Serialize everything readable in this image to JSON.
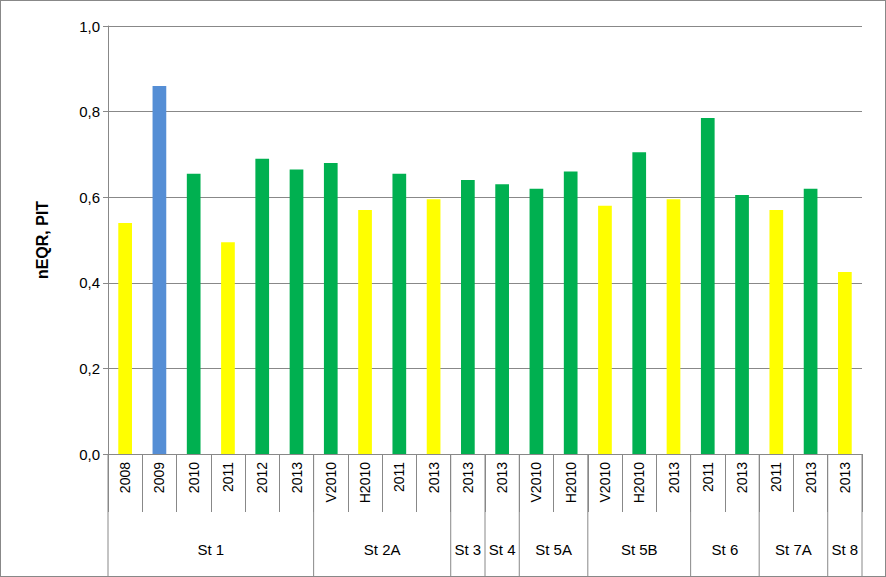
{
  "chart_data": {
    "type": "bar",
    "y_label": "nEQR, PIT",
    "categories": [
      "2008",
      "2009",
      "2010",
      "2011",
      "2012",
      "2013",
      "V2010",
      "H2010",
      "2011",
      "2013",
      "2013",
      "2013",
      "V2010",
      "H2010",
      "V2010",
      "H2010",
      "2013",
      "2011",
      "2013",
      "2011",
      "2013",
      "2013"
    ],
    "category_groups": [
      "St 1",
      "St 1",
      "St 1",
      "St 1",
      "St 1",
      "St 1",
      "St 2A",
      "St 2A",
      "St 2A",
      "St 2A",
      "St 3",
      "St 4",
      "St 5A",
      "St 5A",
      "St 5B",
      "St 5B",
      "St 5B",
      "St 6",
      "St 6",
      "St 7A",
      "St 7A",
      "St 8"
    ],
    "values": [
      0.54,
      0.86,
      0.655,
      0.495,
      0.69,
      0.665,
      0.68,
      0.57,
      0.655,
      0.595,
      0.64,
      0.63,
      0.62,
      0.66,
      0.58,
      0.705,
      0.595,
      0.785,
      0.605,
      0.57,
      0.62,
      0.425
    ],
    "colors": [
      "#ffff00",
      "#558ed5",
      "#00b050",
      "#ffff00",
      "#00b050",
      "#00b050",
      "#00b050",
      "#ffff00",
      "#00b050",
      "#ffff00",
      "#00b050",
      "#00b050",
      "#00b050",
      "#00b050",
      "#ffff00",
      "#00b050",
      "#ffff00",
      "#00b050",
      "#00b050",
      "#ffff00",
      "#00b050",
      "#ffff00"
    ],
    "ylim": [
      0,
      1
    ],
    "yticks": [
      {
        "value": 0,
        "label": "0,0"
      },
      {
        "value": 0.2,
        "label": "0,2"
      },
      {
        "value": 0.4,
        "label": "0,4"
      },
      {
        "value": 0.6,
        "label": "0,6"
      },
      {
        "value": 0.8,
        "label": "0,8"
      },
      {
        "value": 1,
        "label": "1,0"
      }
    ],
    "grid": true
  }
}
